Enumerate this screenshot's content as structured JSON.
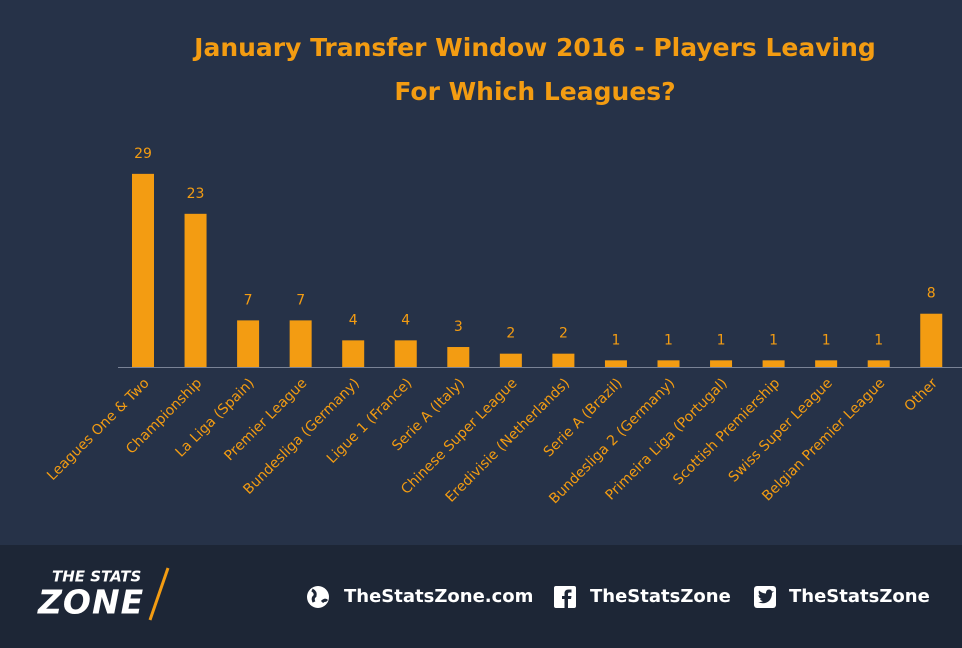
{
  "chart_data": {
    "type": "bar",
    "title": "January Transfer Window 2016 - Players Leaving",
    "subtitle": "For Which Leagues?",
    "categories": [
      "Leagues One & Two",
      "Championship",
      "La Liga (Spain)",
      "Premier League",
      "Bundesliga (Germany)",
      "Ligue 1 (France)",
      "Serie A (Italy)",
      "Chinese Super League",
      "Eredivisie (Netherlands)",
      "Serie A (Brazil)",
      "Bundesliga 2 (Germany)",
      "Primeira Liga (Portugal)",
      "Scottish Premiership",
      "Swiss Super League",
      "Belgian Premier League",
      "Other"
    ],
    "values": [
      29,
      23,
      7,
      7,
      4,
      4,
      3,
      2,
      2,
      1,
      1,
      1,
      1,
      1,
      1,
      8
    ],
    "color": "#f39c12"
  },
  "footer": {
    "logo_top": "THE STATS",
    "logo_bottom": "ZONE",
    "links": [
      "TheStatsZone.com",
      "TheStatsZone",
      "TheStatsZone"
    ]
  }
}
